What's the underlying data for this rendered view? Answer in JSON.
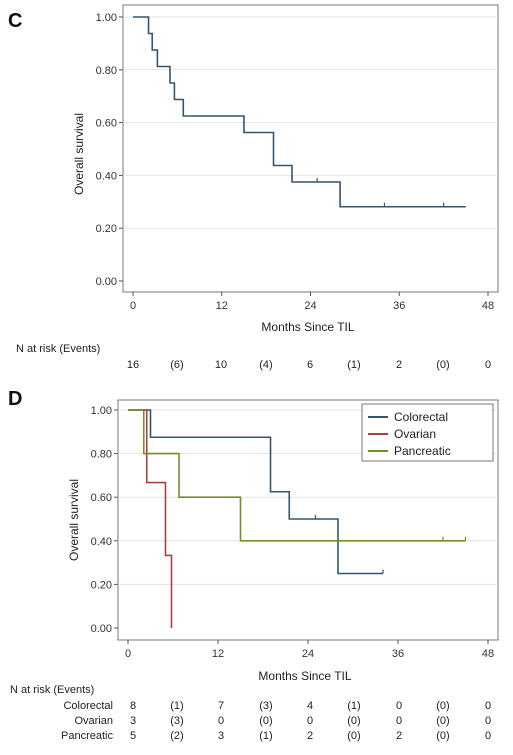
{
  "chart_data": [
    {
      "panel": "C",
      "type": "line",
      "title": "",
      "xlabel": "Months Since TIL",
      "ylabel": "Overall survival",
      "xlim": [
        0,
        48
      ],
      "ylim": [
        0,
        1
      ],
      "xticks": [
        "0",
        "12",
        "24",
        "36",
        "48"
      ],
      "yticks": [
        "0.00",
        "0.20",
        "0.40",
        "0.60",
        "0.80",
        "1.00"
      ],
      "grid": "horizontal",
      "series": [
        {
          "color": "#36556f",
          "steps": [
            [
              0,
              1.0
            ],
            [
              2.1,
              0.9375
            ],
            [
              2.6,
              0.875
            ],
            [
              3.3,
              0.8125
            ],
            [
              5.0,
              0.75
            ],
            [
              5.6,
              0.6875
            ],
            [
              6.8,
              0.625
            ],
            [
              15.0,
              0.5625
            ],
            [
              19.0,
              0.4375
            ],
            [
              21.5,
              0.375
            ],
            [
              28.0,
              0.28125
            ],
            [
              45.0,
              0.28125
            ]
          ],
          "censored": [
            [
              24.9,
              0.375
            ],
            [
              34.0,
              0.28125
            ],
            [
              42.0,
              0.28125
            ]
          ]
        }
      ],
      "risk_table": {
        "header": "N at risk (Events)",
        "rows": [
          {
            "label": "",
            "values": [
              "16",
              "(6)",
              "10",
              "(4)",
              "6",
              "(1)",
              "2",
              "(0)",
              "0"
            ]
          }
        ]
      }
    },
    {
      "panel": "D",
      "type": "line",
      "title": "",
      "xlabel": "Months Since TIL",
      "ylabel": "Overall survival",
      "xlim": [
        0,
        48
      ],
      "ylim": [
        0,
        1
      ],
      "xticks": [
        "0",
        "12",
        "24",
        "36",
        "48"
      ],
      "yticks": [
        "0.00",
        "0.20",
        "0.40",
        "0.60",
        "0.80",
        "1.00"
      ],
      "grid": "horizontal",
      "legend_position": "top-right",
      "series": [
        {
          "name": "Colorectal",
          "color": "#36556f",
          "steps": [
            [
              0,
              1.0
            ],
            [
              3.0,
              0.875
            ],
            [
              19.0,
              0.625
            ],
            [
              21.5,
              0.5
            ],
            [
              28.0,
              0.25
            ],
            [
              34.0,
              0.25
            ]
          ],
          "censored": [
            [
              25.0,
              0.5
            ],
            [
              34.0,
              0.25
            ]
          ]
        },
        {
          "name": "Ovarian",
          "color": "#a8433f",
          "steps": [
            [
              0,
              1.0
            ],
            [
              2.5,
              0.667
            ],
            [
              5.0,
              0.333
            ],
            [
              5.8,
              0.0
            ]
          ],
          "censored": []
        },
        {
          "name": "Pancreatic",
          "color": "#6f8f2a",
          "steps": [
            [
              0,
              1.0
            ],
            [
              2.1,
              0.8
            ],
            [
              6.8,
              0.6
            ],
            [
              15.0,
              0.4
            ],
            [
              45.0,
              0.4
            ]
          ],
          "censored": [
            [
              42.0,
              0.4
            ],
            [
              45.0,
              0.4
            ]
          ]
        }
      ],
      "risk_table": {
        "header": "N at risk (Events)",
        "rows": [
          {
            "label": "Colorectal",
            "values": [
              "8",
              "(1)",
              "7",
              "(3)",
              "4",
              "(1)",
              "0",
              "(0)",
              "0"
            ]
          },
          {
            "label": "Ovarian",
            "values": [
              "3",
              "(3)",
              "0",
              "(0)",
              "0",
              "(0)",
              "0",
              "(0)",
              "0"
            ]
          },
          {
            "label": "Pancreatic",
            "values": [
              "5",
              "(2)",
              "3",
              "(1)",
              "2",
              "(0)",
              "2",
              "(0)",
              "0"
            ]
          }
        ]
      }
    }
  ]
}
